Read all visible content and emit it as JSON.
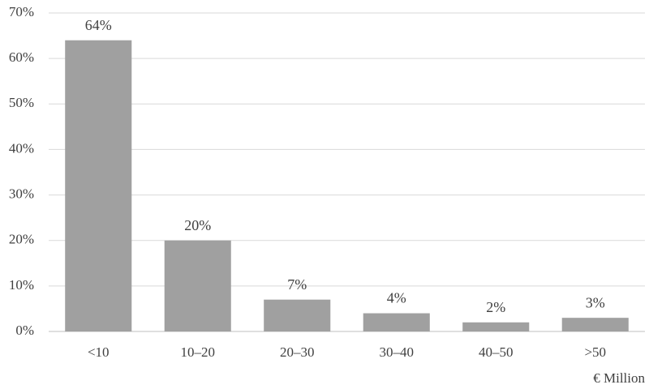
{
  "chart_data": {
    "type": "bar",
    "categories": [
      "<10",
      "10–20",
      "20–30",
      "30–40",
      "40–50",
      ">50"
    ],
    "values": [
      64,
      20,
      7,
      4,
      2,
      3
    ],
    "value_labels": [
      "64%",
      "20%",
      "7%",
      "4%",
      "2%",
      "3%"
    ],
    "color": "#a0a0a0",
    "x_label": "€ Million",
    "ylim": [
      0,
      70
    ],
    "yticks": [
      {
        "value": 0,
        "label": "0%"
      },
      {
        "value": 10,
        "label": "10%"
      },
      {
        "value": 20,
        "label": "20%"
      },
      {
        "value": 30,
        "label": "30%"
      },
      {
        "value": 40,
        "label": "40%"
      },
      {
        "value": 50,
        "label": "50%"
      },
      {
        "value": 60,
        "label": "60%"
      },
      {
        "value": 70,
        "label": "70%"
      }
    ],
    "grid": true
  }
}
